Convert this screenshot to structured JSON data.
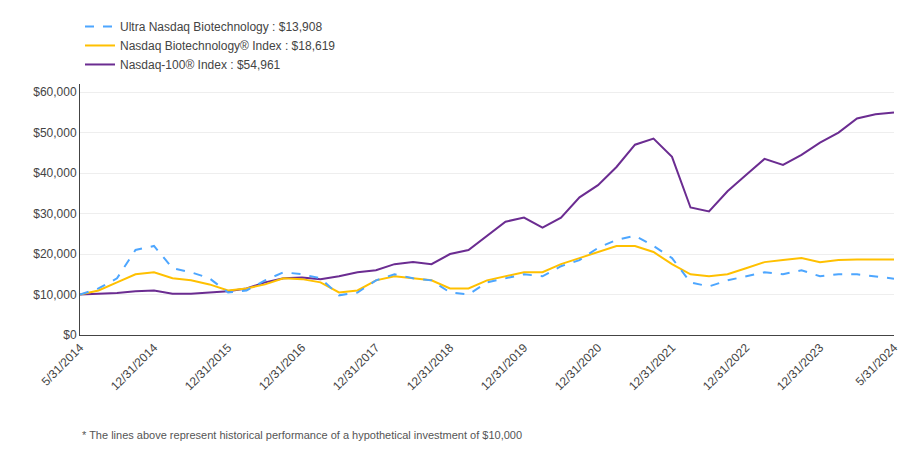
{
  "chart_data": {
    "type": "line",
    "categories": [
      "5/31/2014",
      null,
      null,
      null,
      "12/31/2014",
      null,
      null,
      null,
      "12/31/2015",
      null,
      null,
      null,
      "12/31/2016",
      null,
      null,
      null,
      "12/31/2017",
      null,
      null,
      null,
      "12/31/2018",
      null,
      null,
      null,
      "12/31/2019",
      null,
      null,
      null,
      "12/31/2020",
      null,
      null,
      null,
      "12/31/2021",
      null,
      null,
      null,
      "12/31/2022",
      null,
      null,
      null,
      "12/31/2023",
      null,
      null,
      null,
      "5/31/2024"
    ],
    "series": [
      {
        "name": "Ultra Nasdaq Biotechnology : $13,908",
        "color": "#4da6ff",
        "line_style": "dashed",
        "values": [
          10000,
          11500,
          14000,
          21000,
          22000,
          16500,
          15500,
          14000,
          10500,
          11000,
          13500,
          15500,
          15000,
          14000,
          9800,
          10500,
          13500,
          15000,
          14000,
          13500,
          10500,
          10000,
          13000,
          14000,
          15000,
          14500,
          17000,
          18500,
          21500,
          23500,
          24500,
          22000,
          19000,
          13000,
          12000,
          13500,
          14500,
          15500,
          15000,
          16000,
          14500,
          15000,
          15000,
          14500,
          13908
        ]
      },
      {
        "name": "Nasdaq Biotechnology® Index : $18,619",
        "color": "#ffc000",
        "line_style": "solid",
        "values": [
          10000,
          11000,
          13000,
          15000,
          15500,
          14000,
          13500,
          12500,
          11000,
          11500,
          12500,
          14000,
          13800,
          13000,
          10500,
          11000,
          13500,
          14500,
          14000,
          13500,
          11500,
          11500,
          13500,
          14500,
          15500,
          15500,
          17500,
          19000,
          20500,
          22000,
          22000,
          20500,
          17500,
          15000,
          14500,
          15000,
          16500,
          18000,
          18500,
          19000,
          18000,
          18500,
          18619,
          18619,
          18619
        ]
      },
      {
        "name": "Nasdaq-100® Index : $54,961",
        "color": "#6b2c91",
        "line_style": "solid",
        "values": [
          10000,
          10200,
          10400,
          10800,
          11000,
          10200,
          10200,
          10500,
          10800,
          11500,
          13000,
          14000,
          14200,
          13800,
          14500,
          15500,
          16000,
          17500,
          18000,
          17500,
          20000,
          21000,
          24500,
          28000,
          29000,
          26500,
          29000,
          34000,
          37000,
          41500,
          47000,
          48500,
          44000,
          31500,
          30500,
          35500,
          39500,
          43500,
          42000,
          44500,
          47500,
          50000,
          53500,
          54500,
          54961
        ]
      }
    ],
    "ylim": [
      0,
      62000
    ],
    "yticks": [
      {
        "value": 0,
        "label": "$0"
      },
      {
        "value": 10000,
        "label": "$10,000"
      },
      {
        "value": 20000,
        "label": "$20,000"
      },
      {
        "value": 30000,
        "label": "$30,000"
      },
      {
        "value": 40000,
        "label": "$40,000"
      },
      {
        "value": 50000,
        "label": "$50,000"
      },
      {
        "value": 60000,
        "label": "$60,000"
      }
    ],
    "grid": "y",
    "legend": "top left",
    "annotations": [
      "* The lines above represent historical performance of a hypothetical investment of $10,000"
    ]
  }
}
